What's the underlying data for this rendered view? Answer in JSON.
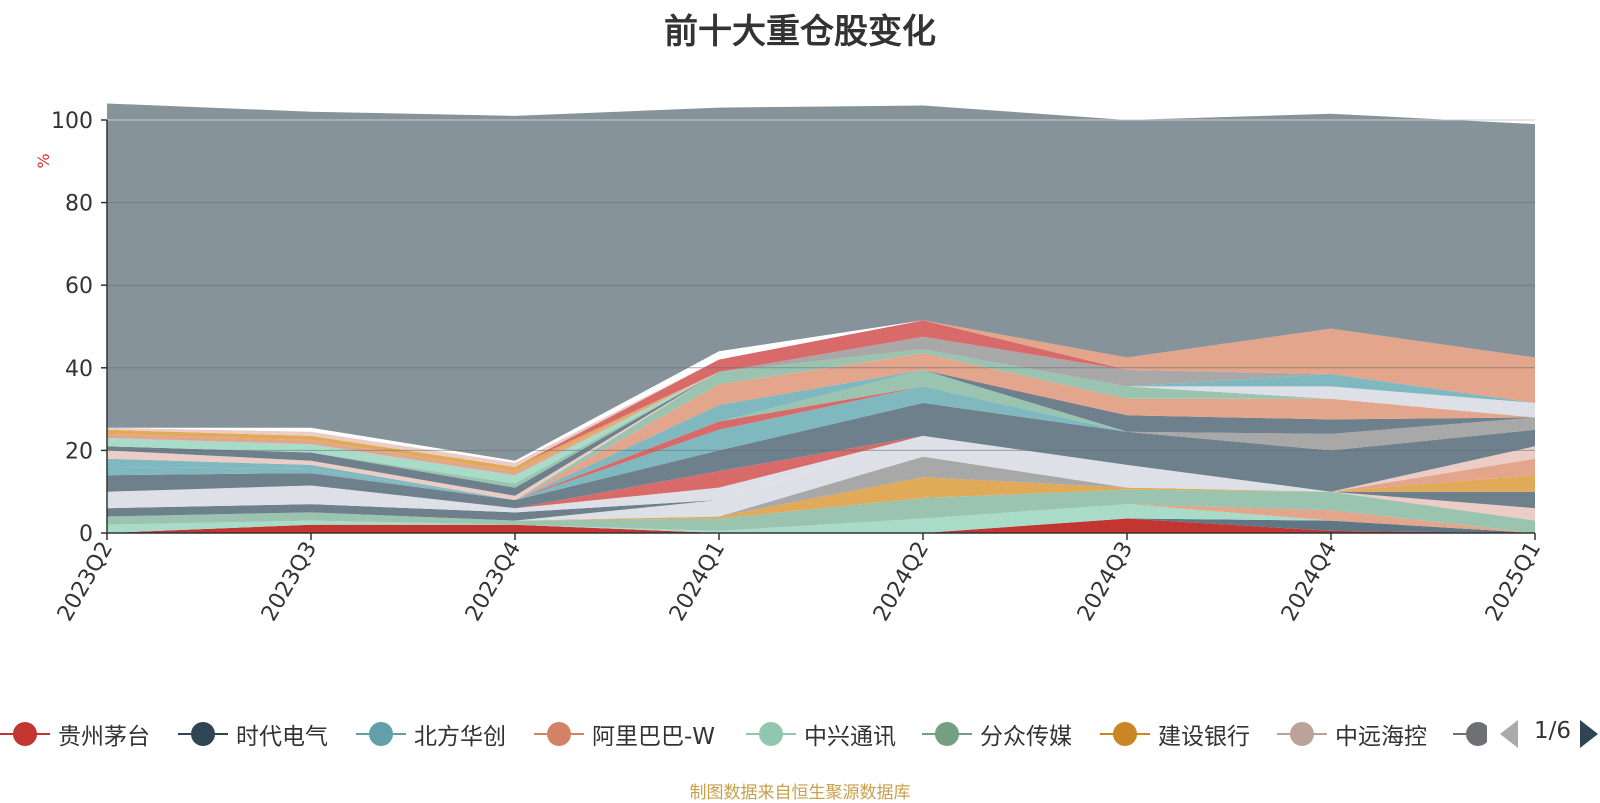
{
  "chart_data": {
    "type": "area",
    "stacked": true,
    "title": "前十大重仓股变化",
    "ylabel": "%",
    "ylim": [
      0,
      100
    ],
    "yticks": [
      0,
      20,
      40,
      60,
      80,
      100
    ],
    "categories": [
      "2023Q2",
      "2023Q3",
      "2023Q4",
      "2024Q1",
      "2024Q2",
      "2024Q3",
      "2024Q4",
      "2025Q1"
    ],
    "series": [
      {
        "color": "#c23531",
        "values": [
          0,
          2,
          2,
          0,
          0,
          3.5,
          0.5,
          0
        ]
      },
      {
        "color": "#5f7685",
        "values": [
          0,
          0,
          0,
          0,
          0,
          0,
          2.5,
          0
        ]
      },
      {
        "color": "#a8dbc8",
        "values": [
          2,
          1,
          0,
          0.5,
          3.5,
          3.5,
          0,
          0
        ]
      },
      {
        "color": "#e3a58b",
        "values": [
          0,
          0,
          0,
          0,
          0,
          0,
          2.5,
          0
        ]
      },
      {
        "color": "#9ac4b0",
        "values": [
          2,
          2,
          1,
          3,
          5,
          3.5,
          4.5,
          3
        ]
      },
      {
        "color": "#e0aa58",
        "values": [
          0,
          0,
          0,
          0.5,
          5,
          0.5,
          0,
          0
        ]
      },
      {
        "color": "#a8a8a8",
        "values": [
          0,
          0,
          0,
          0,
          5,
          0,
          0,
          0
        ]
      },
      {
        "color": "#dde0e6",
        "values": [
          0,
          0,
          0,
          4,
          5,
          5.5,
          0,
          0
        ]
      },
      {
        "color": "#ebcdc5",
        "values": [
          0,
          0,
          0,
          0,
          0,
          0,
          0,
          3
        ]
      },
      {
        "color": "#6f808d",
        "values": [
          2,
          2,
          2,
          0,
          0,
          0,
          0,
          4
        ]
      },
      {
        "color": "#e0aa58",
        "values": [
          0,
          0,
          0,
          0,
          0,
          0,
          0,
          4
        ]
      },
      {
        "color": "#e3a58b",
        "values": [
          0,
          0,
          0,
          0,
          0,
          0,
          0,
          4
        ]
      },
      {
        "color": "#ebcdc5",
        "values": [
          0,
          0,
          0,
          0,
          0,
          0,
          0,
          3
        ]
      },
      {
        "color": "#dde0e6",
        "values": [
          4,
          4.5,
          1,
          3,
          0,
          0,
          0,
          0
        ]
      },
      {
        "color": "#d86a6a",
        "values": [
          0,
          0,
          0,
          4,
          0,
          0,
          0,
          0
        ]
      },
      {
        "color": "#6f808d",
        "values": [
          4,
          3,
          2,
          5,
          8,
          8,
          10,
          4
        ]
      },
      {
        "color": "#a8a8a8",
        "values": [
          0,
          0,
          0,
          0,
          0,
          0,
          4,
          3
        ]
      },
      {
        "color": "#80b8c0",
        "values": [
          2,
          1,
          0,
          5,
          4,
          0,
          0,
          0
        ]
      },
      {
        "color": "#d86a6a",
        "values": [
          0,
          0,
          0,
          2,
          0,
          0,
          0,
          0
        ]
      },
      {
        "color": "#9ac4b0",
        "values": [
          0,
          0,
          0,
          0,
          4,
          0,
          0,
          0
        ]
      },
      {
        "color": "#6f808d",
        "values": [
          0,
          0,
          0,
          0,
          0,
          4,
          3.5,
          0
        ]
      },
      {
        "color": "#80b8c0",
        "values": [
          2,
          1,
          0,
          4,
          0,
          0,
          0,
          0
        ]
      },
      {
        "color": "#e3a58b",
        "values": [
          0,
          0,
          0,
          5,
          4,
          4,
          5,
          0
        ]
      },
      {
        "color": "#9ac4b0",
        "values": [
          0,
          0,
          0,
          3,
          1,
          3,
          0,
          0
        ]
      },
      {
        "color": "#ebcdc5",
        "values": [
          2,
          1,
          1,
          0,
          0,
          0,
          0,
          0
        ]
      },
      {
        "color": "#6f808d",
        "values": [
          1,
          2,
          2,
          0,
          0,
          0,
          0,
          0
        ]
      },
      {
        "color": "#9ac4b0",
        "values": [
          0,
          0,
          1,
          0,
          0,
          0,
          0,
          0
        ]
      },
      {
        "color": "#a8dbc8",
        "values": [
          2,
          2,
          2,
          0,
          0,
          0,
          0,
          0
        ]
      },
      {
        "color": "#dde0e6",
        "values": [
          0,
          0,
          0,
          0,
          0,
          0,
          3,
          3.5
        ]
      },
      {
        "color": "#80b8c0",
        "values": [
          0,
          0,
          0,
          0,
          0,
          0,
          3,
          0
        ]
      },
      {
        "color": "#e3a58b",
        "values": [
          1,
          1,
          1,
          0,
          0,
          0,
          0,
          0
        ]
      },
      {
        "color": "#e0aa58",
        "values": [
          1,
          1,
          1,
          0,
          0,
          0,
          0,
          0
        ]
      },
      {
        "color": "#a8a8a8",
        "values": [
          0,
          0,
          0,
          0,
          3,
          4,
          0,
          0
        ]
      },
      {
        "color": "#d86a6a",
        "values": [
          0,
          0,
          0,
          3,
          4,
          0,
          0,
          0
        ]
      },
      {
        "color": "#e3a58b",
        "values": [
          0,
          0,
          0,
          0,
          0,
          3,
          11,
          11
        ]
      },
      {
        "color": "#ebcdc5",
        "values": [
          0.5,
          1,
          1,
          0,
          0,
          0,
          0,
          0
        ]
      },
      {
        "color": "#ffffff",
        "values": [
          0,
          1,
          0.5,
          2,
          0,
          0,
          0,
          0
        ]
      },
      {
        "color": "#86939b",
        "values": [
          78.5,
          76.5,
          83.5,
          59,
          52,
          57.5,
          52,
          56.5
        ]
      }
    ],
    "legend": {
      "position": "bottom",
      "items": [
        {
          "name": "贵州茅台",
          "color": "#c23531"
        },
        {
          "name": "时代电气",
          "color": "#2f4554"
        },
        {
          "name": "北方华创",
          "color": "#61a0a8"
        },
        {
          "name": "阿里巴巴-W",
          "color": "#d48265"
        },
        {
          "name": "中兴通讯",
          "color": "#91c7ae"
        },
        {
          "name": "分众传媒",
          "color": "#749f83"
        },
        {
          "name": "建设银行",
          "color": "#ca8622"
        },
        {
          "name": "中远海控",
          "color": "#bda29a"
        },
        {
          "name": "",
          "color": "#6e7074"
        }
      ],
      "page": "1/6"
    }
  },
  "source": "制图数据来自恒生聚源数据库"
}
